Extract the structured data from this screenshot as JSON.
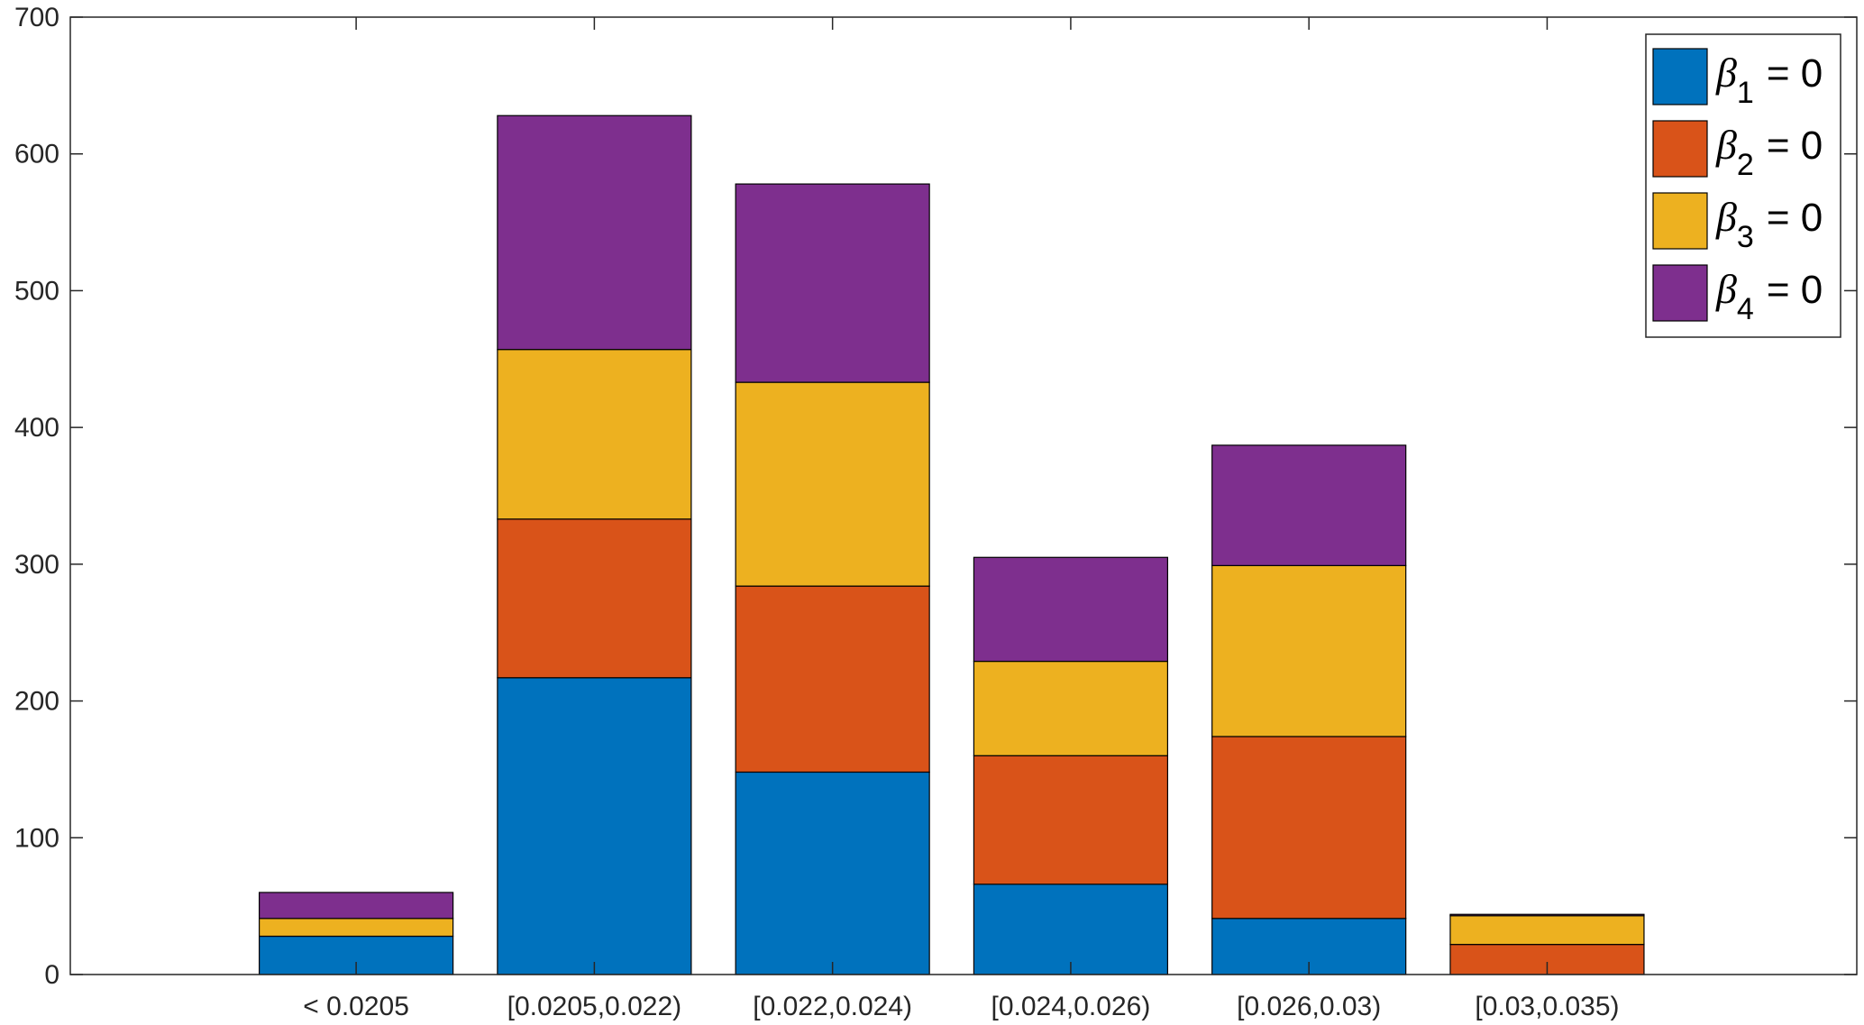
{
  "chart_data": {
    "type": "bar",
    "stacked": true,
    "title": "",
    "xlabel": "",
    "ylabel": "",
    "ylim": [
      0,
      700
    ],
    "yticks": [
      0,
      100,
      200,
      300,
      400,
      500,
      600,
      700
    ],
    "xlim": [
      0,
      7.5
    ],
    "categories": [
      "< 0.0205",
      "[0.0205,0.022)",
      "[0.022,0.024)",
      "[0.024,0.026)",
      "[0.026,0.03)",
      "[0.03,0.035)"
    ],
    "category_positions": [
      1.2,
      2.2,
      3.2,
      4.2,
      5.2,
      6.2
    ],
    "series": [
      {
        "name": "β1 = 0",
        "symbol": "β",
        "subscript": "1",
        "suffix": "= 0",
        "color": "#0072BD",
        "values": [
          28,
          217,
          148,
          66,
          41,
          0
        ]
      },
      {
        "name": "β2 = 0",
        "symbol": "β",
        "subscript": "2",
        "suffix": "= 0",
        "color": "#D95319",
        "values": [
          0,
          116,
          136,
          94,
          133,
          22
        ]
      },
      {
        "name": "β3 = 0",
        "symbol": "β",
        "subscript": "3",
        "suffix": "= 0",
        "color": "#EDB120",
        "values": [
          13,
          124,
          149,
          69,
          125,
          21
        ]
      },
      {
        "name": "β4 = 0",
        "symbol": "β",
        "subscript": "4",
        "suffix": "= 0",
        "color": "#7E2F8E",
        "values": [
          19,
          171,
          145,
          76,
          88,
          1
        ]
      }
    ],
    "legend_position": "top-right",
    "grid": false
  }
}
